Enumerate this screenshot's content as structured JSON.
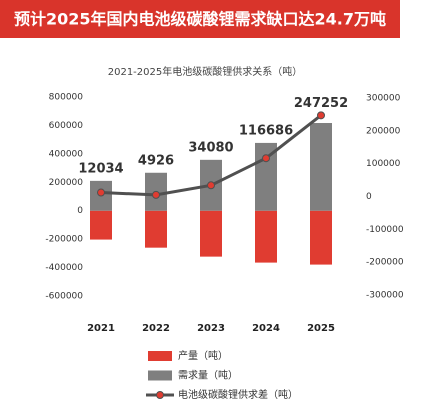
{
  "chart_data": {
    "type": "bar",
    "title": "预计2025年国内电池级碳酸锂需求缺口达24.7万吨",
    "subtitle": "2021-2025年电池级碳酸锂供求关系（吨）",
    "categories": [
      "2021",
      "2022",
      "2023",
      "2024",
      "2025"
    ],
    "series": [
      {
        "name": "产量（吨）",
        "type": "bar",
        "color": "#e03c31",
        "values": [
          -203000,
          -260000,
          -323000,
          -365000,
          -379000
        ]
      },
      {
        "name": "需求量（吨）",
        "type": "bar",
        "color": "#7f7f7f",
        "values": [
          210000,
          267000,
          358000,
          477000,
          617000
        ]
      },
      {
        "name": "电池级碳酸锂供求差（吨）",
        "type": "line",
        "axis": "y2",
        "color": "#505050",
        "marker_color": "#e03c31",
        "values": [
          12034,
          4926,
          34080,
          116686,
          247252
        ]
      }
    ],
    "ylim": [
      -600000,
      800000
    ],
    "yticks": [
      -600000,
      -400000,
      -200000,
      0,
      200000,
      400000,
      600000,
      800000
    ],
    "y2lim": [
      -300000,
      300000
    ],
    "y2ticks": [
      -300000,
      -200000,
      -100000,
      0,
      100000,
      200000,
      300000
    ],
    "grid": false
  }
}
